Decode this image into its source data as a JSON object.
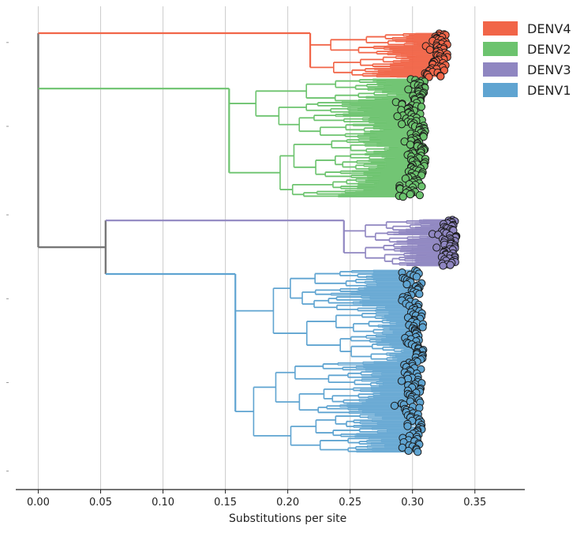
{
  "chart_data": {
    "type": "scatter",
    "subtype": "phylogenetic-tree",
    "title": "",
    "xlabel": "Substitutions per site",
    "ylabel": "",
    "xlim": [
      -0.018,
      0.39
    ],
    "x_ticks": [
      0.0,
      0.05,
      0.1,
      0.15,
      0.2,
      0.25,
      0.3,
      0.35
    ],
    "x_tick_labels": [
      "0.00",
      "0.05",
      "0.10",
      "0.15",
      "0.20",
      "0.25",
      "0.30",
      "0.35"
    ],
    "grid": "vertical",
    "legend_position": "top-right",
    "root_color": "#777777",
    "series": [
      {
        "name": "DENV4",
        "color": "#f16548",
        "stem": {
          "x": [
            0.0,
            0.218
          ],
          "row": 0.0
        },
        "clade": {
          "x_range": [
            0.218,
            0.33
          ],
          "row_range": [
            0.0,
            0.095
          ],
          "tips": 60
        }
      },
      {
        "name": "DENV2",
        "color": "#6cc36e",
        "stem": {
          "x": [
            0.0,
            0.153
          ],
          "row": 0.119
        },
        "clade": {
          "x_range": [
            0.153,
            0.312
          ],
          "row_range": [
            0.098,
            0.352
          ],
          "tips": 150
        }
      },
      {
        "name": "DENV3",
        "color": "#8f86c1",
        "stem": {
          "x": [
            0.054,
            0.245
          ],
          "row": 0.402
        },
        "clade": {
          "x_range": [
            0.245,
            0.336
          ],
          "row_range": [
            0.4,
            0.5
          ],
          "tips": 65
        }
      },
      {
        "name": "DENV1",
        "color": "#5fa4d1",
        "stem": {
          "x": [
            0.054,
            0.158
          ],
          "row": 0.517
        },
        "clade": {
          "x_range": [
            0.158,
            0.31
          ],
          "row_range": [
            0.508,
            0.9
          ],
          "tips": 170
        }
      }
    ],
    "internal_nodes": [
      {
        "x": 0.0,
        "children": [
          "DENV4",
          "DENV2",
          "DENV3/DENV1"
        ]
      },
      {
        "x": 0.054,
        "children": [
          "DENV3",
          "DENV1"
        ]
      }
    ]
  }
}
